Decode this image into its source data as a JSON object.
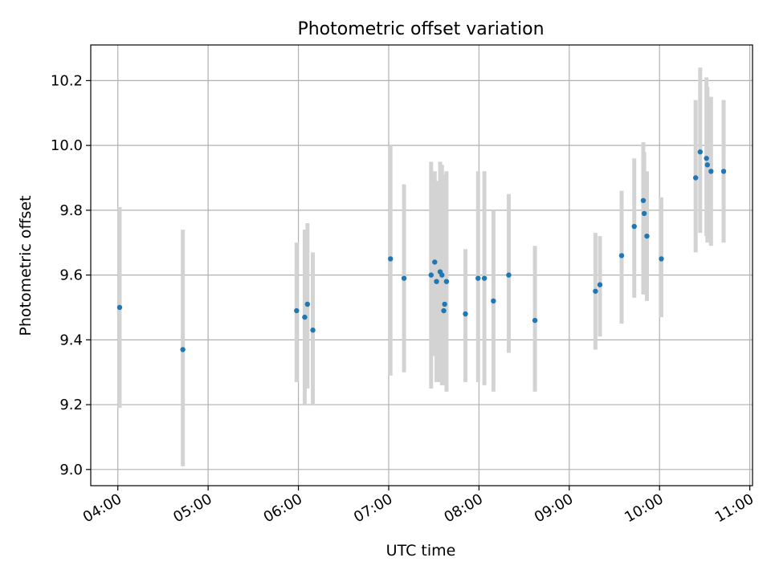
{
  "chart_data": {
    "type": "scatter",
    "title": "Photometric offset variation",
    "xlabel": "UTC time",
    "ylabel": "Photometric offset",
    "x_unit": "hours UTC",
    "xlim": [
      3.7,
      11.03
    ],
    "ylim": [
      8.95,
      10.31
    ],
    "grid": true,
    "legend": "none",
    "colors": {
      "points": "#1f77b4",
      "errorbars": "#d3d3d3",
      "grid": "#b0b0b0"
    },
    "xticks": [
      {
        "value": 4,
        "label": "04:00"
      },
      {
        "value": 5,
        "label": "05:00"
      },
      {
        "value": 6,
        "label": "06:00"
      },
      {
        "value": 7,
        "label": "07:00"
      },
      {
        "value": 8,
        "label": "08:00"
      },
      {
        "value": 9,
        "label": "09:00"
      },
      {
        "value": 10,
        "label": "10:00"
      },
      {
        "value": 11,
        "label": "11:00"
      }
    ],
    "yticks": [
      {
        "value": 9.0,
        "label": "9.0"
      },
      {
        "value": 9.2,
        "label": "9.2"
      },
      {
        "value": 9.4,
        "label": "9.4"
      },
      {
        "value": 9.6,
        "label": "9.6"
      },
      {
        "value": 9.8,
        "label": "9.8"
      },
      {
        "value": 10.0,
        "label": "10.0"
      },
      {
        "value": 10.2,
        "label": "10.2"
      }
    ],
    "points": [
      {
        "x": 4.02,
        "y": 9.5,
        "lo": 9.19,
        "hi": 9.81
      },
      {
        "x": 4.72,
        "y": 9.37,
        "lo": 9.01,
        "hi": 9.74
      },
      {
        "x": 5.98,
        "y": 9.49,
        "lo": 9.27,
        "hi": 9.7
      },
      {
        "x": 6.07,
        "y": 9.47,
        "lo": 9.2,
        "hi": 9.74
      },
      {
        "x": 6.1,
        "y": 9.51,
        "lo": 9.25,
        "hi": 9.76
      },
      {
        "x": 6.16,
        "y": 9.43,
        "lo": 9.2,
        "hi": 9.67
      },
      {
        "x": 7.02,
        "y": 9.65,
        "lo": 9.29,
        "hi": 10.0
      },
      {
        "x": 7.17,
        "y": 9.59,
        "lo": 9.3,
        "hi": 9.88
      },
      {
        "x": 7.47,
        "y": 9.6,
        "lo": 9.25,
        "hi": 9.95
      },
      {
        "x": 7.51,
        "y": 9.64,
        "lo": 9.35,
        "hi": 9.92
      },
      {
        "x": 7.53,
        "y": 9.58,
        "lo": 9.27,
        "hi": 9.89
      },
      {
        "x": 7.57,
        "y": 9.61,
        "lo": 9.27,
        "hi": 9.95
      },
      {
        "x": 7.59,
        "y": 9.6,
        "lo": 9.26,
        "hi": 9.94
      },
      {
        "x": 7.61,
        "y": 9.49,
        "lo": 9.29,
        "hi": 9.91
      },
      {
        "x": 7.62,
        "y": 9.51,
        "lo": 9.26,
        "hi": 9.9
      },
      {
        "x": 7.64,
        "y": 9.58,
        "lo": 9.24,
        "hi": 9.92
      },
      {
        "x": 7.85,
        "y": 9.48,
        "lo": 9.27,
        "hi": 9.68
      },
      {
        "x": 7.99,
        "y": 9.59,
        "lo": 9.27,
        "hi": 9.92
      },
      {
        "x": 8.06,
        "y": 9.59,
        "lo": 9.26,
        "hi": 9.92
      },
      {
        "x": 8.16,
        "y": 9.52,
        "lo": 9.24,
        "hi": 9.8
      },
      {
        "x": 8.33,
        "y": 9.6,
        "lo": 9.36,
        "hi": 9.85
      },
      {
        "x": 8.62,
        "y": 9.46,
        "lo": 9.24,
        "hi": 9.69
      },
      {
        "x": 9.29,
        "y": 9.55,
        "lo": 9.37,
        "hi": 9.73
      },
      {
        "x": 9.34,
        "y": 9.57,
        "lo": 9.41,
        "hi": 9.72
      },
      {
        "x": 9.58,
        "y": 9.66,
        "lo": 9.45,
        "hi": 9.86
      },
      {
        "x": 9.72,
        "y": 9.75,
        "lo": 9.53,
        "hi": 9.96
      },
      {
        "x": 9.82,
        "y": 9.83,
        "lo": 9.54,
        "hi": 10.01
      },
      {
        "x": 9.83,
        "y": 9.79,
        "lo": 9.57,
        "hi": 9.98
      },
      {
        "x": 9.86,
        "y": 9.72,
        "lo": 9.52,
        "hi": 9.92
      },
      {
        "x": 10.02,
        "y": 9.65,
        "lo": 9.47,
        "hi": 9.84
      },
      {
        "x": 10.4,
        "y": 9.9,
        "lo": 9.67,
        "hi": 10.14
      },
      {
        "x": 10.45,
        "y": 9.98,
        "lo": 9.73,
        "hi": 10.24
      },
      {
        "x": 10.52,
        "y": 9.96,
        "lo": 9.72,
        "hi": 10.21
      },
      {
        "x": 10.53,
        "y": 9.94,
        "lo": 9.7,
        "hi": 10.18
      },
      {
        "x": 10.57,
        "y": 9.92,
        "lo": 9.69,
        "hi": 10.15
      },
      {
        "x": 10.71,
        "y": 9.92,
        "lo": 9.7,
        "hi": 10.14
      }
    ]
  }
}
